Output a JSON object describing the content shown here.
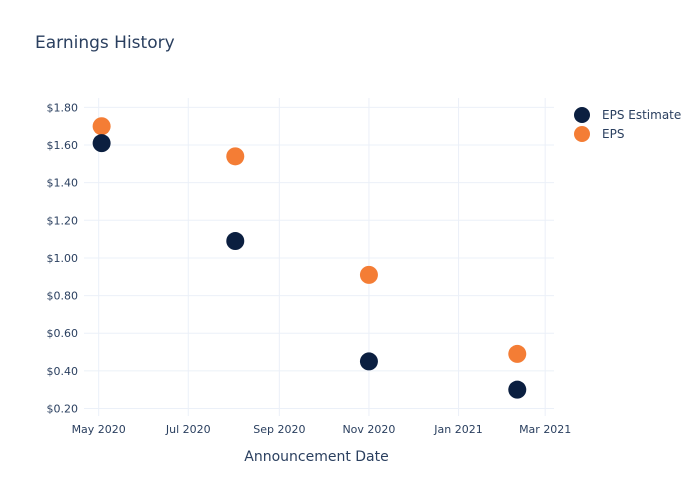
{
  "chart_data": {
    "type": "scatter",
    "title": "Earnings History",
    "xlabel": "Announcement Date",
    "ylabel": "",
    "x_ticks": [
      "May 2020",
      "Jul 2020",
      "Sep 2020",
      "Nov 2020",
      "Jan 2021",
      "Mar 2021"
    ],
    "y_ticks": [
      "$0.20",
      "$0.40",
      "$0.60",
      "$0.80",
      "$1.00",
      "$1.20",
      "$1.40",
      "$1.60",
      "$1.80"
    ],
    "xlim": [
      "2020-04-21",
      "2021-03-07"
    ],
    "ylim": [
      0.16,
      1.85
    ],
    "grid": true,
    "legend_position": "top-right",
    "series": [
      {
        "name": "EPS Estimate",
        "color": "#0b1f40",
        "points": [
          {
            "x": "2020-05-03",
            "y": 1.61
          },
          {
            "x": "2020-08-02",
            "y": 1.09
          },
          {
            "x": "2020-11-01",
            "y": 0.45
          },
          {
            "x": "2021-02-10",
            "y": 0.3
          }
        ]
      },
      {
        "name": "EPS",
        "color": "#f47d35",
        "points": [
          {
            "x": "2020-05-03",
            "y": 1.7
          },
          {
            "x": "2020-08-02",
            "y": 1.54
          },
          {
            "x": "2020-11-01",
            "y": 0.91
          },
          {
            "x": "2021-02-10",
            "y": 0.49
          }
        ]
      }
    ]
  }
}
